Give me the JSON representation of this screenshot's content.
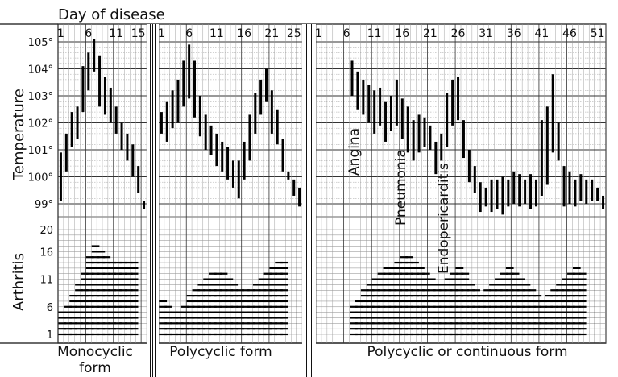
{
  "chart_data": {
    "type": "bar",
    "x_title": "Day of disease",
    "temperature_label": "Temperature",
    "arthritis_label": "Arthritis",
    "temperature_ticks": [
      "105°",
      "104°",
      "103°",
      "102°",
      "101°",
      "100°",
      "99°"
    ],
    "arthritis_ticks": [
      "20",
      "16",
      "11",
      "6",
      "1"
    ],
    "panels": [
      {
        "name_line1": "Monocyclic",
        "name_line2": "form",
        "day_ticks": [
          "1",
          "6",
          "11",
          "15"
        ],
        "days": 16,
        "temperature_ranges": [
          [
            99.1,
            100.9
          ],
          [
            100.2,
            101.6
          ],
          [
            101.1,
            102.4
          ],
          [
            101.4,
            102.6
          ],
          [
            102.4,
            104.1
          ],
          [
            103.2,
            104.6
          ],
          [
            103.9,
            105.1
          ],
          [
            102.6,
            104.5
          ],
          [
            102.3,
            103.7
          ],
          [
            102.0,
            103.3
          ],
          [
            101.6,
            102.6
          ],
          [
            101.0,
            102.0
          ],
          [
            100.6,
            101.6
          ],
          [
            100.0,
            101.2
          ],
          [
            99.4,
            100.4
          ],
          [
            98.8,
            99.1
          ]
        ],
        "arthritis_counts": [
          5,
          6,
          8,
          10,
          12,
          15,
          17,
          16,
          15,
          14,
          14,
          14,
          14,
          14,
          0,
          0
        ]
      },
      {
        "name_line1": "Polycyclic form",
        "day_ticks": [
          "1",
          "6",
          "11",
          "16",
          "21",
          "25"
        ],
        "days": 26,
        "temperature_ranges": [
          [
            101.6,
            102.4
          ],
          [
            101.3,
            102.8
          ],
          [
            101.8,
            103.2
          ],
          [
            102.0,
            103.6
          ],
          [
            102.6,
            104.3
          ],
          [
            102.9,
            104.9
          ],
          [
            102.2,
            104.3
          ],
          [
            101.5,
            103.0
          ],
          [
            101.0,
            102.3
          ],
          [
            100.8,
            101.9
          ],
          [
            100.4,
            101.6
          ],
          [
            100.2,
            101.3
          ],
          [
            99.9,
            101.1
          ],
          [
            99.6,
            100.6
          ],
          [
            99.2,
            100.6
          ],
          [
            99.9,
            101.3
          ],
          [
            100.6,
            102.3
          ],
          [
            101.6,
            103.1
          ],
          [
            102.3,
            103.6
          ],
          [
            102.8,
            104.0
          ],
          [
            101.6,
            103.2
          ],
          [
            101.2,
            102.5
          ],
          [
            100.2,
            101.4
          ],
          [
            99.9,
            100.2
          ],
          [
            99.3,
            99.9
          ],
          [
            98.9,
            99.6
          ]
        ],
        "arthritis_counts": [
          7,
          6,
          5,
          5,
          6,
          8,
          9,
          10,
          11,
          12,
          12,
          12,
          11,
          10,
          9,
          9,
          9,
          10,
          11,
          12,
          13,
          14,
          14,
          0,
          0,
          0
        ]
      },
      {
        "name_line1": "Polycyclic or continuous form",
        "day_ticks": [
          "1",
          "6",
          "11",
          "16",
          "21",
          "26",
          "31",
          "36",
          "41",
          "46",
          "51"
        ],
        "days": 52,
        "temperature_ranges": [
          [
            0,
            0
          ],
          [
            0,
            0
          ],
          [
            0,
            0
          ],
          [
            0,
            0
          ],
          [
            0,
            0
          ],
          [
            0,
            0
          ],
          [
            103.0,
            104.3
          ],
          [
            102.5,
            103.9
          ],
          [
            102.3,
            103.6
          ],
          [
            102.0,
            103.4
          ],
          [
            101.6,
            103.2
          ],
          [
            101.9,
            103.3
          ],
          [
            101.3,
            102.8
          ],
          [
            101.7,
            103.0
          ],
          [
            101.9,
            103.6
          ],
          [
            101.4,
            102.9
          ],
          [
            100.9,
            102.6
          ],
          [
            100.6,
            102.1
          ],
          [
            100.9,
            102.3
          ],
          [
            101.1,
            102.2
          ],
          [
            101.0,
            101.9
          ],
          [
            100.1,
            101.3
          ],
          [
            100.6,
            101.6
          ],
          [
            101.1,
            103.1
          ],
          [
            101.9,
            103.6
          ],
          [
            102.1,
            103.7
          ],
          [
            100.7,
            102.1
          ],
          [
            99.8,
            101.0
          ],
          [
            99.4,
            100.4
          ],
          [
            98.7,
            99.8
          ],
          [
            98.9,
            99.6
          ],
          [
            98.7,
            99.9
          ],
          [
            98.8,
            99.9
          ],
          [
            98.6,
            100.0
          ],
          [
            98.9,
            99.9
          ],
          [
            99.0,
            100.2
          ],
          [
            98.9,
            100.1
          ],
          [
            99.0,
            99.9
          ],
          [
            98.8,
            100.1
          ],
          [
            98.9,
            99.9
          ],
          [
            99.3,
            102.1
          ],
          [
            99.7,
            102.6
          ],
          [
            100.9,
            103.8
          ],
          [
            100.6,
            102.0
          ],
          [
            98.9,
            100.4
          ],
          [
            99.0,
            100.2
          ],
          [
            98.9,
            99.9
          ],
          [
            99.1,
            100.1
          ],
          [
            99.0,
            99.9
          ],
          [
            99.1,
            99.9
          ],
          [
            99.1,
            99.6
          ],
          [
            98.8,
            99.3
          ]
        ],
        "arthritis_counts": [
          0,
          0,
          0,
          0,
          0,
          0,
          6,
          7,
          9,
          10,
          11,
          12,
          13,
          13,
          14,
          15,
          15,
          14,
          13,
          12,
          11,
          10,
          10,
          11,
          12,
          13,
          12,
          10,
          9,
          8,
          9,
          10,
          11,
          12,
          13,
          12,
          11,
          10,
          9,
          8,
          7,
          8,
          9,
          10,
          11,
          12,
          13,
          12,
          0,
          0,
          0,
          0
        ]
      }
    ],
    "annotations": [
      "Angina",
      "Pneumonia",
      "Endopericarditis"
    ]
  }
}
